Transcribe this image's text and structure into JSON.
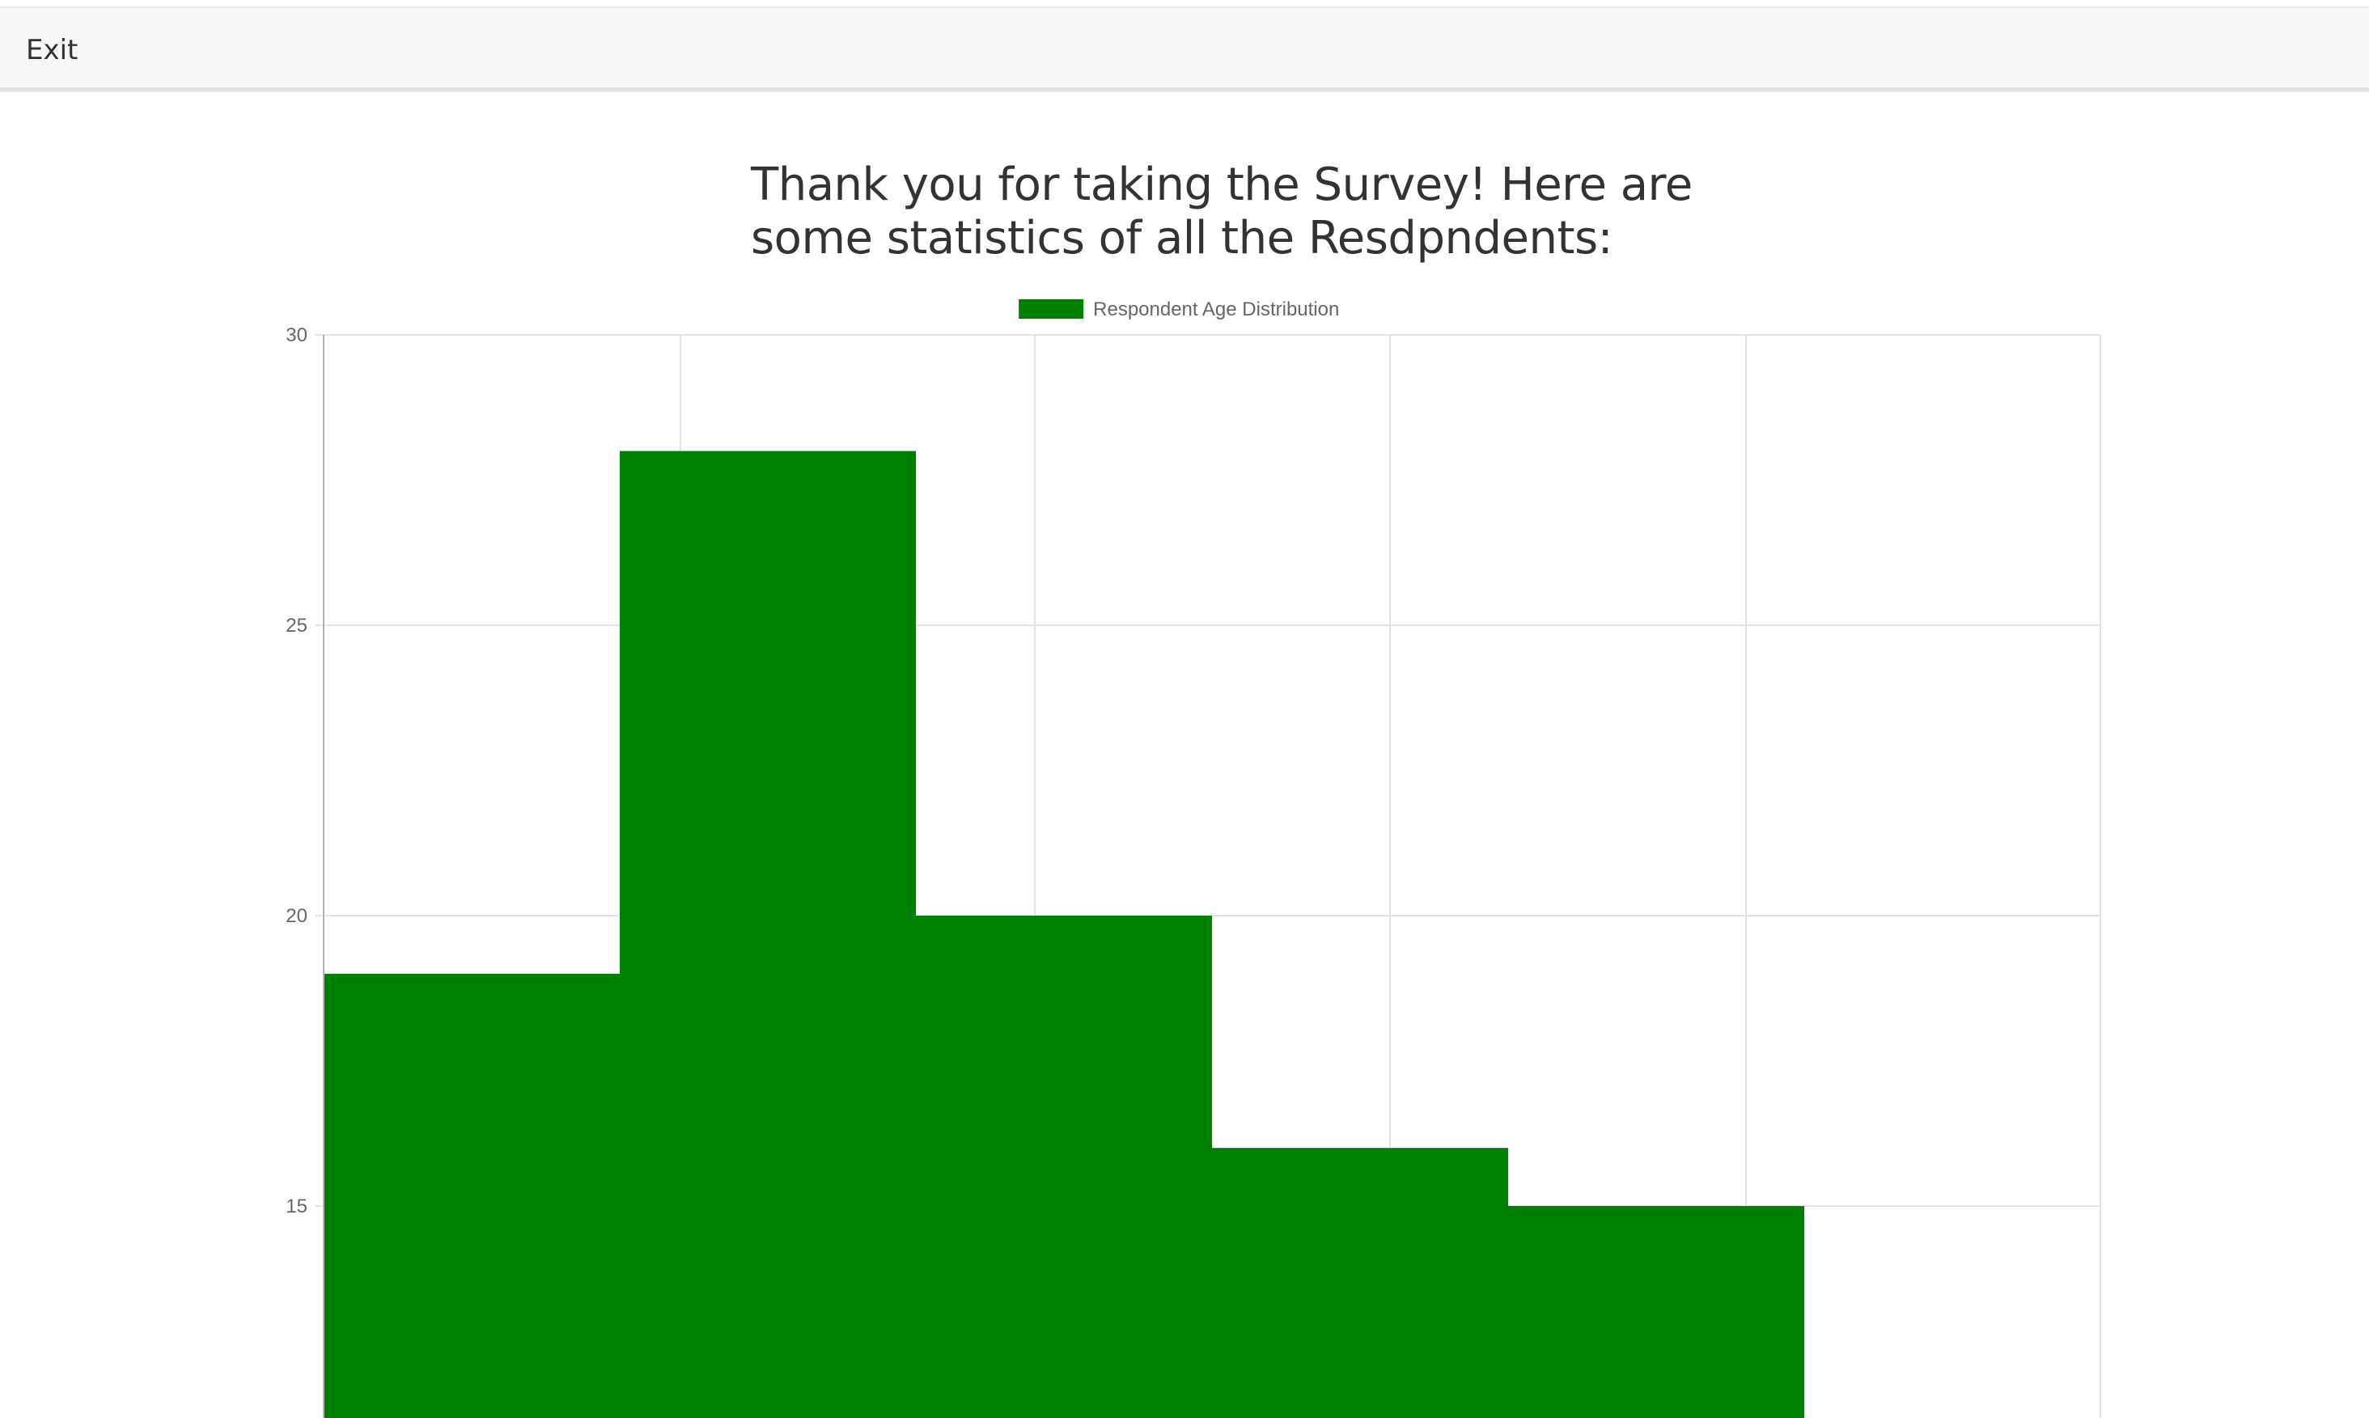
{
  "navbar": {
    "exit_label": "Exit"
  },
  "heading": {
    "line1": "Thank you for taking the Survey! Here are",
    "line2": "some statistics of all the Resdpndents:"
  },
  "colors": {
    "bar": "#008000",
    "grid": "#e3e3e3",
    "axis": "#b3b3b3",
    "tick_text": "#666666"
  },
  "chart_data": {
    "type": "bar",
    "title": "",
    "xlabel": "",
    "ylabel": "",
    "legend": {
      "label": "Respondent Age Distribution",
      "position": "top"
    },
    "series": [
      {
        "name": "Respondent Age Distribution",
        "values": [
          19,
          28,
          20,
          16,
          15
        ]
      }
    ],
    "visible_ylim": [
      11.35,
      30
    ],
    "ytick_values": [
      15,
      20,
      25,
      30
    ],
    "grid": true
  }
}
